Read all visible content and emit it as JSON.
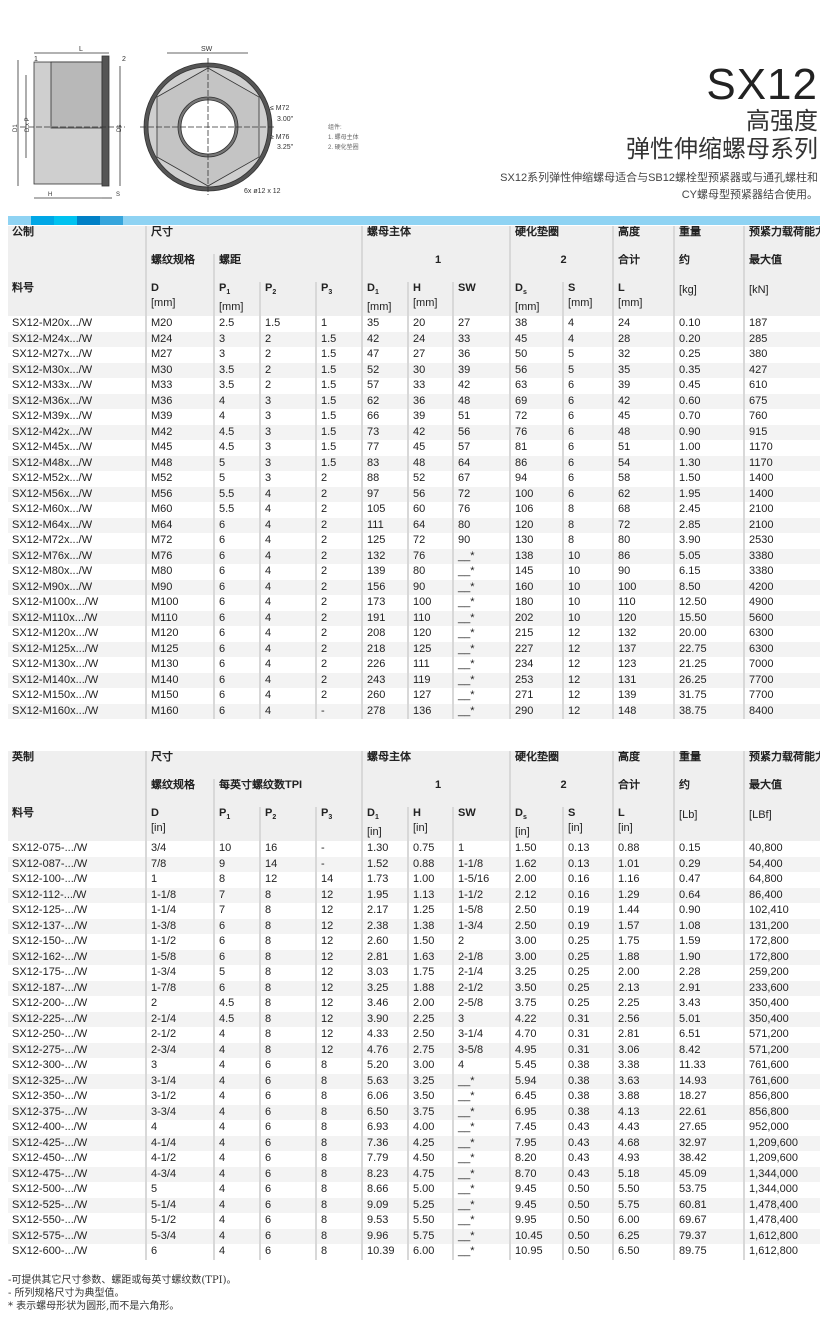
{
  "header": {
    "model": "SX12",
    "subtitle1": "高强度",
    "subtitle2": "弹性伸缩螺母系列",
    "description1": "SX12系列弹性伸缩螺母适合与SB12螺栓型预紧器或与通孔螺柱和",
    "description2": "CY螺母型预紧器结合使用。"
  },
  "drawing": {
    "labels": {
      "l": "L",
      "sw": "SW",
      "n1": "1",
      "n2": "2",
      "d1": "D1",
      "dxp": "D x P",
      "ds": "Ds",
      "h": "H",
      "s": "S",
      "m72": "≤ M72",
      "a300": "3.00\"",
      "m76": "≥ M76",
      "a325": "3.25\"",
      "holes": "6x  ø12 x 12"
    },
    "components_title": "组件:",
    "component1": "1. 螺母主体",
    "component2": "2. 硬化垫圈"
  },
  "colors": {
    "bar": "#8fd3f3",
    "bar_blocks": [
      "#00a7e6",
      "#00c2f0",
      "#0080c6",
      "#36a5dc"
    ]
  },
  "metric": {
    "h1": [
      "公制",
      "尺寸",
      "螺母主体",
      "硬化垫圈",
      "高度",
      "重量",
      "预紧力载荷能力"
    ],
    "h2": [
      "螺纹规格",
      "螺距",
      "1",
      "2",
      "合计",
      "约",
      "最大值"
    ],
    "h3": [
      "料号",
      "D",
      "P1",
      "P2",
      "P3",
      "D1",
      "H",
      "SW",
      "Ds",
      "S",
      "L",
      "",
      ""
    ],
    "units": [
      "",
      "[mm]",
      "[mm]",
      "",
      "",
      "[mm]",
      "[mm]",
      "",
      "[mm]",
      "[mm]",
      "[mm]",
      "[kg]",
      "[kN]"
    ],
    "rows": [
      [
        "SX12-M20x.../W",
        "M20",
        "2.5",
        "1.5",
        "1",
        "35",
        "20",
        "27",
        "38",
        "4",
        "24",
        "0.10",
        "187"
      ],
      [
        "SX12-M24x.../W",
        "M24",
        "3",
        "2",
        "1.5",
        "42",
        "24",
        "33",
        "45",
        "4",
        "28",
        "0.20",
        "285"
      ],
      [
        "SX12-M27x.../W",
        "M27",
        "3",
        "2",
        "1.5",
        "47",
        "27",
        "36",
        "50",
        "5",
        "32",
        "0.25",
        "380"
      ],
      [
        "SX12-M30x.../W",
        "M30",
        "3.5",
        "2",
        "1.5",
        "52",
        "30",
        "39",
        "56",
        "5",
        "35",
        "0.35",
        "427"
      ],
      [
        "SX12-M33x.../W",
        "M33",
        "3.5",
        "2",
        "1.5",
        "57",
        "33",
        "42",
        "63",
        "6",
        "39",
        "0.45",
        "610"
      ],
      [
        "SX12-M36x.../W",
        "M36",
        "4",
        "3",
        "1.5",
        "62",
        "36",
        "48",
        "69",
        "6",
        "42",
        "0.60",
        "675"
      ],
      [
        "SX12-M39x.../W",
        "M39",
        "4",
        "3",
        "1.5",
        "66",
        "39",
        "51",
        "72",
        "6",
        "45",
        "0.70",
        "760"
      ],
      [
        "SX12-M42x.../W",
        "M42",
        "4.5",
        "3",
        "1.5",
        "73",
        "42",
        "56",
        "76",
        "6",
        "48",
        "0.90",
        "915"
      ],
      [
        "SX12-M45x.../W",
        "M45",
        "4.5",
        "3",
        "1.5",
        "77",
        "45",
        "57",
        "81",
        "6",
        "51",
        "1.00",
        "1170"
      ],
      [
        "SX12-M48x.../W",
        "M48",
        "5",
        "3",
        "1.5",
        "83",
        "48",
        "64",
        "86",
        "6",
        "54",
        "1.30",
        "1170"
      ],
      [
        "SX12-M52x.../W",
        "M52",
        "5",
        "3",
        "2",
        "88",
        "52",
        "67",
        "94",
        "6",
        "58",
        "1.50",
        "1400"
      ],
      [
        "SX12-M56x.../W",
        "M56",
        "5.5",
        "4",
        "2",
        "97",
        "56",
        "72",
        "100",
        "6",
        "62",
        "1.95",
        "1400"
      ],
      [
        "SX12-M60x.../W",
        "M60",
        "5.5",
        "4",
        "2",
        "105",
        "60",
        "76",
        "106",
        "8",
        "68",
        "2.45",
        "2100"
      ],
      [
        "SX12-M64x.../W",
        "M64",
        "6",
        "4",
        "2",
        "111",
        "64",
        "80",
        "120",
        "8",
        "72",
        "2.85",
        "2100"
      ],
      [
        "SX12-M72x.../W",
        "M72",
        "6",
        "4",
        "2",
        "125",
        "72",
        "90",
        "130",
        "8",
        "80",
        "3.90",
        "2530"
      ],
      [
        "SX12-M76x.../W",
        "M76",
        "6",
        "4",
        "2",
        "132",
        "76",
        "__*",
        "138",
        "10",
        "86",
        "5.05",
        "3380"
      ],
      [
        "SX12-M80x.../W",
        "M80",
        "6",
        "4",
        "2",
        "139",
        "80",
        "__*",
        "145",
        "10",
        "90",
        "6.15",
        "3380"
      ],
      [
        "SX12-M90x.../W",
        "M90",
        "6",
        "4",
        "2",
        "156",
        "90",
        "__*",
        "160",
        "10",
        "100",
        "8.50",
        "4200"
      ],
      [
        "SX12-M100x.../W",
        "M100",
        "6",
        "4",
        "2",
        "173",
        "100",
        "__*",
        "180",
        "10",
        "110",
        "12.50",
        "4900"
      ],
      [
        "SX12-M110x.../W",
        "M110",
        "6",
        "4",
        "2",
        "191",
        "110",
        "__*",
        "202",
        "10",
        "120",
        "15.50",
        "5600"
      ],
      [
        "SX12-M120x.../W",
        "M120",
        "6",
        "4",
        "2",
        "208",
        "120",
        "__*",
        "215",
        "12",
        "132",
        "20.00",
        "6300"
      ],
      [
        "SX12-M125x.../W",
        "M125",
        "6",
        "4",
        "2",
        "218",
        "125",
        "__*",
        "227",
        "12",
        "137",
        "22.75",
        "6300"
      ],
      [
        "SX12-M130x.../W",
        "M130",
        "6",
        "4",
        "2",
        "226",
        "111",
        "__*",
        "234",
        "12",
        "123",
        "21.25",
        "7000"
      ],
      [
        "SX12-M140x.../W",
        "M140",
        "6",
        "4",
        "2",
        "243",
        "119",
        "__*",
        "253",
        "12",
        "131",
        "26.25",
        "7700"
      ],
      [
        "SX12-M150x.../W",
        "M150",
        "6",
        "4",
        "2",
        "260",
        "127",
        "__*",
        "271",
        "12",
        "139",
        "31.75",
        "7700"
      ],
      [
        "SX12-M160x.../W",
        "M160",
        "6",
        "4",
        "-",
        "278",
        "136",
        "__*",
        "290",
        "12",
        "148",
        "38.75",
        "8400"
      ]
    ]
  },
  "imperial": {
    "h1": [
      "英制",
      "尺寸",
      "螺母主体",
      "硬化垫圈",
      "高度",
      "重量",
      "预紧力载荷能力"
    ],
    "h2": [
      "螺纹规格",
      "每英寸螺纹数TPI",
      "1",
      "2",
      "合计",
      "约",
      "最大值"
    ],
    "h3": [
      "料号",
      "D",
      "P1",
      "P2",
      "P3",
      "D1",
      "H",
      "SW",
      "Ds",
      "S",
      "L",
      "",
      ""
    ],
    "units": [
      "",
      "[in]",
      "",
      "",
      "",
      "[in]",
      "[in]",
      "",
      "[in]",
      "[in]",
      "[in]",
      "[Lb]",
      "[LBf]"
    ],
    "rows": [
      [
        "SX12-075-.../W",
        "3/4",
        "10",
        "16",
        "-",
        "1.30",
        "0.75",
        "1",
        "1.50",
        "0.13",
        "0.88",
        "0.15",
        "40,800"
      ],
      [
        "SX12-087-.../W",
        "7/8",
        "9",
        "14",
        "-",
        "1.52",
        "0.88",
        "1-1/8",
        "1.62",
        "0.13",
        "1.01",
        "0.29",
        "54,400"
      ],
      [
        "SX12-100-.../W",
        "1",
        "8",
        "12",
        "14",
        "1.73",
        "1.00",
        "1-5/16",
        "2.00",
        "0.16",
        "1.16",
        "0.47",
        "64,800"
      ],
      [
        "SX12-112-.../W",
        "1-1/8",
        "7",
        "8",
        "12",
        "1.95",
        "1.13",
        "1-1/2",
        "2.12",
        "0.16",
        "1.29",
        "0.64",
        "86,400"
      ],
      [
        "SX12-125-.../W",
        "1-1/4",
        "7",
        "8",
        "12",
        "2.17",
        "1.25",
        "1-5/8",
        "2.50",
        "0.19",
        "1.44",
        "0.90",
        "102,410"
      ],
      [
        "SX12-137-.../W",
        "1-3/8",
        "6",
        "8",
        "12",
        "2.38",
        "1.38",
        "1-3/4",
        "2.50",
        "0.19",
        "1.57",
        "1.08",
        "131,200"
      ],
      [
        "SX12-150-.../W",
        "1-1/2",
        "6",
        "8",
        "12",
        "2.60",
        "1.50",
        "2",
        "3.00",
        "0.25",
        "1.75",
        "1.59",
        "172,800"
      ],
      [
        "SX12-162-.../W",
        "1-5/8",
        "6",
        "8",
        "12",
        "2.81",
        "1.63",
        "2-1/8",
        "3.00",
        "0.25",
        "1.88",
        "1.90",
        "172,800"
      ],
      [
        "SX12-175-.../W",
        "1-3/4",
        "5",
        "8",
        "12",
        "3.03",
        "1.75",
        "2-1/4",
        "3.25",
        "0.25",
        "2.00",
        "2.28",
        "259,200"
      ],
      [
        "SX12-187-.../W",
        "1-7/8",
        "6",
        "8",
        "12",
        "3.25",
        "1.88",
        "2-1/2",
        "3.50",
        "0.25",
        "2.13",
        "2.91",
        "233,600"
      ],
      [
        "SX12-200-.../W",
        "2",
        "4.5",
        "8",
        "12",
        "3.46",
        "2.00",
        "2-5/8",
        "3.75",
        "0.25",
        "2.25",
        "3.43",
        "350,400"
      ],
      [
        "SX12-225-.../W",
        "2-1/4",
        "4.5",
        "8",
        "12",
        "3.90",
        "2.25",
        "3",
        "4.22",
        "0.31",
        "2.56",
        "5.01",
        "350,400"
      ],
      [
        "SX12-250-.../W",
        "2-1/2",
        "4",
        "8",
        "12",
        "4.33",
        "2.50",
        "3-1/4",
        "4.70",
        "0.31",
        "2.81",
        "6.51",
        "571,200"
      ],
      [
        "SX12-275-.../W",
        "2-3/4",
        "4",
        "8",
        "12",
        "4.76",
        "2.75",
        "3-5/8",
        "4.95",
        "0.31",
        "3.06",
        "8.42",
        "571,200"
      ],
      [
        "SX12-300-.../W",
        "3",
        "4",
        "6",
        "8",
        "5.20",
        "3.00",
        "4",
        "5.45",
        "0.38",
        "3.38",
        "11.33",
        "761,600"
      ],
      [
        "SX12-325-.../W",
        "3-1/4",
        "4",
        "6",
        "8",
        "5.63",
        "3.25",
        "__*",
        "5.94",
        "0.38",
        "3.63",
        "14.93",
        "761,600"
      ],
      [
        "SX12-350-.../W",
        "3-1/2",
        "4",
        "6",
        "8",
        "6.06",
        "3.50",
        "__*",
        "6.45",
        "0.38",
        "3.88",
        "18.27",
        "856,800"
      ],
      [
        "SX12-375-.../W",
        "3-3/4",
        "4",
        "6",
        "8",
        "6.50",
        "3.75",
        "__*",
        "6.95",
        "0.38",
        "4.13",
        "22.61",
        "856,800"
      ],
      [
        "SX12-400-.../W",
        "4",
        "4",
        "6",
        "8",
        "6.93",
        "4.00",
        "__*",
        "7.45",
        "0.43",
        "4.43",
        "27.65",
        "952,000"
      ],
      [
        "SX12-425-.../W",
        "4-1/4",
        "4",
        "6",
        "8",
        "7.36",
        "4.25",
        "__*",
        "7.95",
        "0.43",
        "4.68",
        "32.97",
        "1,209,600"
      ],
      [
        "SX12-450-.../W",
        "4-1/2",
        "4",
        "6",
        "8",
        "7.79",
        "4.50",
        "__*",
        "8.20",
        "0.43",
        "4.93",
        "38.42",
        "1,209,600"
      ],
      [
        "SX12-475-.../W",
        "4-3/4",
        "4",
        "6",
        "8",
        "8.23",
        "4.75",
        "__*",
        "8.70",
        "0.43",
        "5.18",
        "45.09",
        "1,344,000"
      ],
      [
        "SX12-500-.../W",
        "5",
        "4",
        "6",
        "8",
        "8.66",
        "5.00",
        "__*",
        "9.45",
        "0.50",
        "5.50",
        "53.75",
        "1,344,000"
      ],
      [
        "SX12-525-.../W",
        "5-1/4",
        "4",
        "6",
        "8",
        "9.09",
        "5.25",
        "__*",
        "9.45",
        "0.50",
        "5.75",
        "60.81",
        "1,478,400"
      ],
      [
        "SX12-550-.../W",
        "5-1/2",
        "4",
        "6",
        "8",
        "9.53",
        "5.50",
        "__*",
        "9.95",
        "0.50",
        "6.00",
        "69.67",
        "1,478,400"
      ],
      [
        "SX12-575-.../W",
        "5-3/4",
        "4",
        "6",
        "8",
        "9.96",
        "5.75",
        "__*",
        "10.45",
        "0.50",
        "6.25",
        "79.37",
        "1,612,800"
      ],
      [
        "SX12-600-.../W",
        "6",
        "4",
        "6",
        "8",
        "10.39",
        "6.00",
        "__*",
        "10.95",
        "0.50",
        "6.50",
        "89.75",
        "1,612,800"
      ]
    ]
  },
  "notes": [
    "-可提供其它尺寸参数、螺距或每英寸螺纹数(TPI)。",
    "- 所列规格尺寸为典型值。",
    "* 表示螺母形状为圆形,而不是六角形。"
  ]
}
